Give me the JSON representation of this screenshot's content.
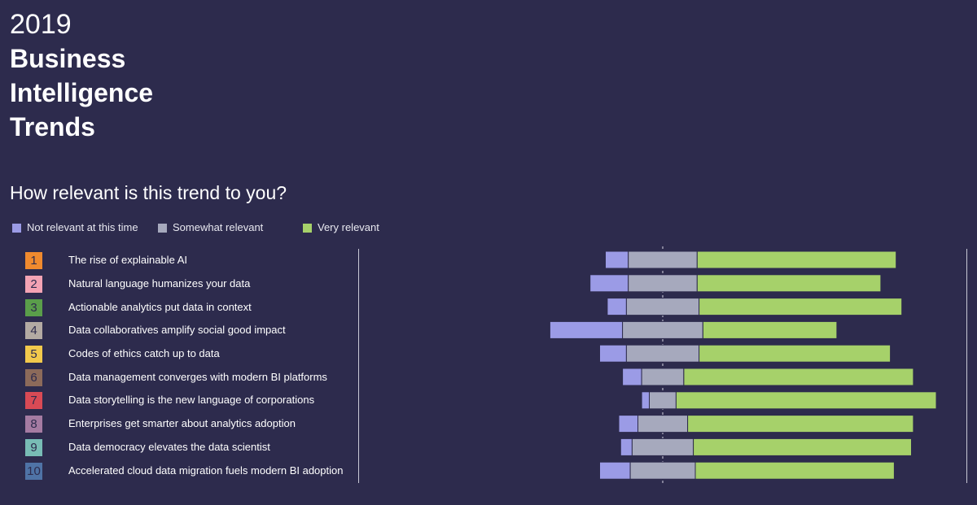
{
  "header": {
    "year": "2019",
    "title_lines": [
      "Business",
      "Intelligence",
      "Trends"
    ]
  },
  "question": "How relevant is this trend to you?",
  "legend": [
    {
      "label": "Not relevant at this time",
      "color": "#9b9be6"
    },
    {
      "label": "Somewhat relevant",
      "color": "#a6a9bd"
    },
    {
      "label": "Very relevant",
      "color": "#a6d16a"
    }
  ],
  "trends": [
    {
      "num": "1",
      "label": "The rise of explainable AI",
      "color": "#f08a2e"
    },
    {
      "num": "2",
      "label": "Natural language humanizes your data",
      "color": "#f4a3b4"
    },
    {
      "num": "3",
      "label": "Actionable analytics put data in context",
      "color": "#5a9e4a"
    },
    {
      "num": "4",
      "label": "Data collaboratives amplify social good impact",
      "color": "#b3aaa3"
    },
    {
      "num": "5",
      "label": "Codes of ethics catch up to data",
      "color": "#f2c94c"
    },
    {
      "num": "6",
      "label": "Data management converges with modern BI platforms",
      "color": "#8c6a5a"
    },
    {
      "num": "7",
      "label": "Data storytelling is the new language of corporations",
      "color": "#d94a55"
    },
    {
      "num": "8",
      "label": "Enterprises get smarter about analytics adoption",
      "color": "#a57ba2"
    },
    {
      "num": "9",
      "label": "Data democracy elevates the data scientist",
      "color": "#78bcb5"
    },
    {
      "num": "10",
      "label": "Accelerated cloud data migration fuels modern BI adoption",
      "color": "#4f73a6"
    }
  ],
  "chart_data": {
    "type": "bar",
    "subtype": "diverging-stacked-horizontal",
    "title": "How relevant is this trend to you?",
    "categories": [
      "1",
      "2",
      "3",
      "4",
      "5",
      "6",
      "7",
      "8",
      "9",
      "10"
    ],
    "series": [
      {
        "name": "Not relevant at this time",
        "color": "#9b9be6",
        "values": [
          6,
          10,
          5,
          19,
          7,
          5,
          2,
          5,
          3,
          8
        ]
      },
      {
        "name": "Somewhat relevant",
        "color": "#a6a9bd",
        "values": [
          18,
          18,
          19,
          21,
          19,
          11,
          7,
          13,
          16,
          17
        ]
      },
      {
        "name": "Very relevant",
        "color": "#a6d16a",
        "values": [
          52,
          48,
          53,
          35,
          50,
          60,
          68,
          59,
          57,
          52
        ]
      }
    ],
    "notes": "Bars diverge around the midpoint of 'Somewhat relevant' (dashed center line). Values are estimated percentages of respondents."
  }
}
